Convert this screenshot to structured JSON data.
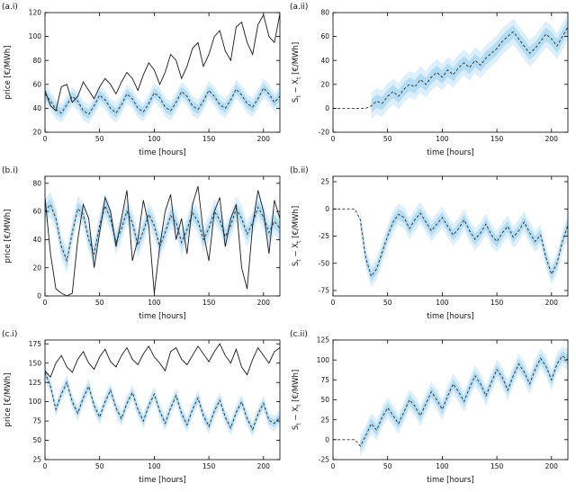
{
  "figure": {
    "description": "Six-panel electricity price simulation figure",
    "rows": 3,
    "cols": 2
  },
  "colors": {
    "band_outer": "#bfe2f6",
    "band_inner": "#93cdec",
    "solid_line": "#1a1a1a",
    "dashed_line": "#2b2b2b",
    "axis": "#000000",
    "background": "#ffffff"
  },
  "chart_data": {
    "type": "line",
    "x": [
      0,
      5,
      10,
      15,
      20,
      25,
      30,
      35,
      40,
      45,
      50,
      55,
      60,
      65,
      70,
      75,
      80,
      85,
      90,
      95,
      100,
      105,
      110,
      115,
      120,
      125,
      130,
      135,
      140,
      145,
      150,
      155,
      160,
      165,
      170,
      175,
      180,
      185,
      190,
      195,
      200,
      205,
      210,
      215
    ],
    "panels": [
      {
        "label": "(a.i)",
        "xlabel": "time [hours]",
        "ylabel": "price [€/MWh]",
        "xlim": [
          0,
          215
        ],
        "ylim": [
          20,
          120
        ],
        "xticks": [
          0,
          50,
          100,
          150,
          200
        ],
        "yticks": [
          20,
          40,
          60,
          80,
          100,
          120
        ],
        "series": [
          {
            "name": "dashed-line",
            "style": "dashed",
            "band_halfwidth": 8,
            "band_from_x": 0,
            "values": [
              52,
              46,
              39,
              36,
              43,
              50,
              46,
              38,
              35,
              42,
              51,
              47,
              40,
              36,
              43,
              52,
              48,
              40,
              37,
              44,
              53,
              49,
              41,
              38,
              45,
              54,
              50,
              42,
              39,
              46,
              55,
              50,
              43,
              40,
              47,
              56,
              51,
              44,
              41,
              48,
              57,
              52,
              45,
              50
            ]
          },
          {
            "name": "solid-line",
            "style": "solid",
            "values": [
              55,
              42,
              38,
              58,
              60,
              45,
              50,
              62,
              55,
              48,
              58,
              65,
              60,
              52,
              62,
              70,
              65,
              55,
              68,
              78,
              72,
              60,
              70,
              85,
              80,
              65,
              75,
              90,
              95,
              75,
              85,
              100,
              105,
              88,
              80,
              108,
              112,
              95,
              85,
              110,
              118,
              100,
              95,
              119
            ]
          }
        ]
      },
      {
        "label": "(a.ii)",
        "xlabel": "time [hours]",
        "ylabel": "S_t − X_t [€/MWh]",
        "xlim": [
          0,
          215
        ],
        "ylim": [
          -20,
          80
        ],
        "xticks": [
          0,
          50,
          100,
          150,
          200
        ],
        "yticks": [
          -20,
          0,
          20,
          40,
          60,
          80
        ],
        "series": [
          {
            "name": "dashed-line",
            "style": "dashed",
            "band_halfwidth": 11,
            "band_from_x": 33,
            "values": [
              0,
              0,
              0,
              0,
              0,
              0,
              0,
              2,
              6,
              4,
              10,
              14,
              10,
              16,
              20,
              18,
              24,
              20,
              26,
              30,
              26,
              32,
              28,
              34,
              38,
              34,
              40,
              36,
              42,
              46,
              50,
              56,
              60,
              64,
              58,
              52,
              46,
              50,
              56,
              62,
              58,
              52,
              60,
              68
            ]
          }
        ]
      },
      {
        "label": "(b.i)",
        "xlabel": "time [hours]",
        "ylabel": "price [€/MWh]",
        "xlim": [
          0,
          215
        ],
        "ylim": [
          0,
          85
        ],
        "xticks": [
          0,
          50,
          100,
          150,
          200
        ],
        "yticks": [
          0,
          20,
          40,
          60,
          80
        ],
        "series": [
          {
            "name": "dashed-line",
            "style": "dashed",
            "band_halfwidth": 9,
            "band_from_x": 0,
            "values": [
              60,
              65,
              55,
              35,
              25,
              45,
              62,
              58,
              40,
              30,
              50,
              64,
              55,
              38,
              48,
              60,
              52,
              36,
              46,
              58,
              50,
              35,
              45,
              57,
              52,
              38,
              47,
              59,
              53,
              40,
              48,
              60,
              54,
              42,
              50,
              62,
              55,
              44,
              52,
              63,
              56,
              45,
              53,
              48
            ]
          },
          {
            "name": "solid-line",
            "style": "solid",
            "values": [
              70,
              30,
              5,
              2,
              0,
              2,
              40,
              65,
              55,
              20,
              45,
              70,
              60,
              35,
              55,
              75,
              25,
              40,
              68,
              50,
              2,
              35,
              60,
              72,
              40,
              55,
              30,
              65,
              78,
              45,
              25,
              60,
              70,
              35,
              55,
              65,
              20,
              5,
              50,
              75,
              60,
              30,
              68,
              55
            ]
          }
        ]
      },
      {
        "label": "(b.ii)",
        "xlabel": "time [hours]",
        "ylabel": "S_t − X_t [€/MWh]",
        "xlim": [
          0,
          215
        ],
        "ylim": [
          -80,
          30
        ],
        "xticks": [
          0,
          50,
          100,
          150,
          200
        ],
        "yticks": [
          -75,
          -50,
          -25,
          0,
          25
        ],
        "series": [
          {
            "name": "dashed-line",
            "style": "dashed",
            "band_halfwidth": 10,
            "band_from_x": 23,
            "values": [
              0,
              0,
              0,
              0,
              0,
              -10,
              -45,
              -62,
              -55,
              -40,
              -25,
              -12,
              -5,
              -8,
              -18,
              -10,
              -4,
              -12,
              -20,
              -14,
              -8,
              -16,
              -24,
              -18,
              -10,
              -20,
              -28,
              -22,
              -14,
              -24,
              -30,
              -22,
              -16,
              -26,
              -20,
              -12,
              -22,
              -30,
              -24,
              -45,
              -60,
              -50,
              -30,
              -15
            ]
          }
        ]
      },
      {
        "label": "(c.i)",
        "xlabel": "time [hours]",
        "ylabel": "price [€/MWh]",
        "xlim": [
          0,
          215
        ],
        "ylim": [
          25,
          180
        ],
        "xticks": [
          0,
          50,
          100,
          150,
          200
        ],
        "yticks": [
          25,
          50,
          75,
          100,
          125,
          150,
          175
        ],
        "series": [
          {
            "name": "dashed-line",
            "style": "dashed",
            "band_halfwidth": 10,
            "band_from_x": 0,
            "values": [
              138,
              120,
              90,
              110,
              125,
              100,
              85,
              105,
              120,
              95,
              80,
              100,
              115,
              92,
              78,
              98,
              112,
              90,
              75,
              95,
              110,
              88,
              72,
              92,
              108,
              85,
              70,
              90,
              105,
              82,
              68,
              88,
              102,
              80,
              66,
              86,
              100,
              78,
              64,
              84,
              98,
              76,
              72,
              80
            ]
          },
          {
            "name": "solid-line",
            "style": "solid",
            "values": [
              140,
              132,
              150,
              160,
              145,
              138,
              155,
              165,
              150,
              142,
              158,
              168,
              152,
              145,
              160,
              170,
              155,
              148,
              162,
              172,
              158,
              150,
              140,
              165,
              170,
              155,
              148,
              160,
              172,
              162,
              152,
              165,
              175,
              160,
              150,
              168,
              145,
              135,
              155,
              170,
              160,
              150,
              165,
              170
            ]
          }
        ]
      },
      {
        "label": "(c.ii)",
        "xlabel": "time [hours]",
        "ylabel": "S_t − X_t [€/MWh]",
        "xlim": [
          0,
          215
        ],
        "ylim": [
          -25,
          125
        ],
        "xticks": [
          0,
          50,
          100,
          150,
          200
        ],
        "yticks": [
          -25,
          0,
          25,
          50,
          75,
          100,
          125
        ],
        "series": [
          {
            "name": "dashed-line",
            "style": "dashed",
            "band_halfwidth": 13,
            "band_from_x": 23,
            "values": [
              0,
              0,
              0,
              0,
              0,
              -8,
              5,
              20,
              12,
              28,
              40,
              30,
              20,
              35,
              50,
              42,
              30,
              45,
              60,
              50,
              38,
              55,
              70,
              60,
              48,
              65,
              80,
              70,
              55,
              72,
              88,
              78,
              62,
              80,
              95,
              85,
              70,
              88,
              102,
              92,
              75,
              95,
              105,
              100
            ]
          }
        ]
      }
    ]
  }
}
